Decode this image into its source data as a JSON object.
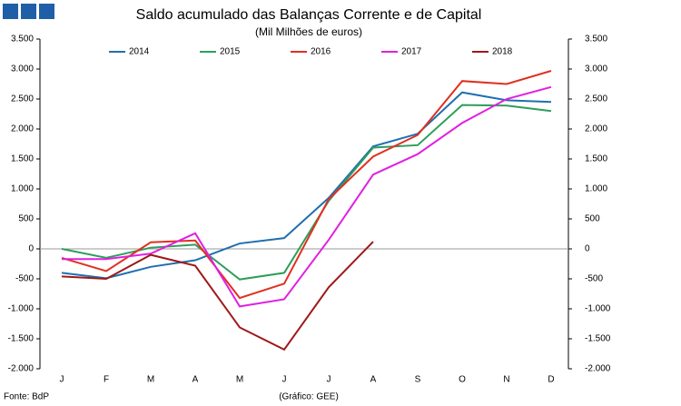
{
  "chart_data": {
    "type": "line",
    "title": "Saldo acumulado das Balanças Corrente e de Capital",
    "subtitle": "(Mil Milhões de euros)",
    "source": "Fonte: BdP",
    "credit": "(Gráfico: GEE)",
    "categories": [
      "J",
      "F",
      "M",
      "A",
      "M",
      "J",
      "J",
      "A",
      "S",
      "O",
      "N",
      "D"
    ],
    "series": [
      {
        "name": "2014",
        "color": "#1f6fb0",
        "values": [
          -400,
          -490,
          -300,
          -190,
          90,
          180,
          850,
          1710,
          1920,
          2610,
          2480,
          2450
        ]
      },
      {
        "name": "2015",
        "color": "#2e9e5b",
        "values": [
          0,
          -150,
          20,
          70,
          -510,
          -400,
          800,
          1690,
          1730,
          2400,
          2390,
          2300
        ]
      },
      {
        "name": "2016",
        "color": "#e03020",
        "values": [
          -150,
          -370,
          110,
          140,
          -820,
          -580,
          830,
          1540,
          1900,
          2800,
          2750,
          2970
        ]
      },
      {
        "name": "2017",
        "color": "#e020e0",
        "values": [
          -170,
          -170,
          -80,
          260,
          -960,
          -840,
          150,
          1240,
          1580,
          2100,
          2500,
          2700
        ]
      },
      {
        "name": "2018",
        "color": "#a01818",
        "values": [
          -460,
          -500,
          -100,
          -280,
          -1310,
          -1680,
          -640,
          120,
          null,
          null,
          null,
          null
        ]
      }
    ],
    "ylim": [
      -2000,
      3500
    ],
    "yticks": [
      {
        "value": -2000,
        "label": "-2.000"
      },
      {
        "value": -1500,
        "label": "-1.500"
      },
      {
        "value": -1000,
        "label": "-1.000"
      },
      -500,
      0,
      500,
      {
        "value": 1000,
        "label": "1.000"
      },
      {
        "value": 1500,
        "label": "1.500"
      },
      {
        "value": 2000,
        "label": "2.000"
      },
      {
        "value": 2500,
        "label": "2.500"
      },
      {
        "value": 3000,
        "label": "3.000"
      },
      {
        "value": 3500,
        "label": "3.500"
      }
    ],
    "grid": false,
    "legend": "top"
  }
}
